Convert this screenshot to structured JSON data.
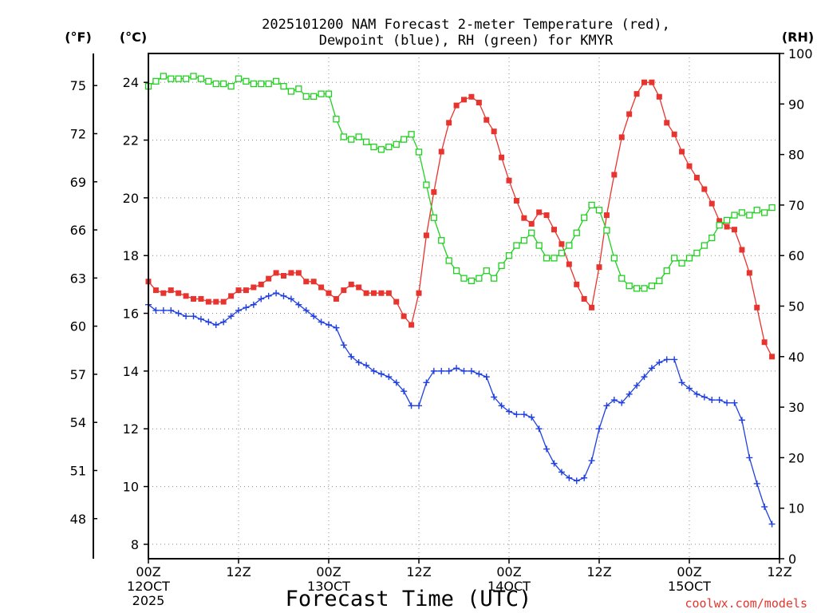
{
  "chart_data": {
    "type": "line",
    "title_lines": [
      "2025101200 NAM Forecast 2-meter Temperature (red),",
      "Dewpoint (blue), RH (green) for KMYR"
    ],
    "xlabel": "Forecast Time (UTC)",
    "credit": "coolwx.com/models",
    "units": {
      "fahrenheit": "(°F)",
      "celsius": "(°C)",
      "rh": "(RH)"
    },
    "x_range_hours": [
      0,
      84
    ],
    "x_ticks": [
      {
        "hour": 0,
        "lines": [
          "00Z",
          "12OCT",
          "2025"
        ]
      },
      {
        "hour": 12,
        "lines": [
          "12Z"
        ]
      },
      {
        "hour": 24,
        "lines": [
          "00Z",
          "13OCT"
        ]
      },
      {
        "hour": 36,
        "lines": [
          "12Z"
        ]
      },
      {
        "hour": 48,
        "lines": [
          "00Z",
          "14OCT"
        ]
      },
      {
        "hour": 60,
        "lines": [
          "12Z"
        ]
      },
      {
        "hour": 72,
        "lines": [
          "00Z",
          "15OCT"
        ]
      },
      {
        "hour": 84,
        "lines": [
          "12Z"
        ]
      }
    ],
    "celsius_axis": {
      "range": [
        7.5,
        25.0
      ],
      "ticks": [
        "8",
        "10",
        "12",
        "14",
        "16",
        "18",
        "20",
        "22",
        "24"
      ]
    },
    "fahrenheit_axis": {
      "ticks": [
        "48",
        "51",
        "54",
        "57",
        "60",
        "63",
        "66",
        "69",
        "72",
        "75"
      ]
    },
    "rh_axis": {
      "range": [
        0,
        100
      ],
      "ticks": [
        "0",
        "10",
        "20",
        "30",
        "40",
        "50",
        "60",
        "70",
        "80",
        "90",
        "100"
      ]
    },
    "series": [
      {
        "name": "Temperature",
        "units": "°C",
        "color": "#e8342e",
        "marker": "filled-square",
        "values": [
          17.1,
          16.8,
          16.7,
          16.8,
          16.7,
          16.6,
          16.5,
          16.5,
          16.4,
          16.4,
          16.4,
          16.6,
          16.8,
          16.8,
          16.9,
          17.0,
          17.2,
          17.4,
          17.3,
          17.4,
          17.4,
          17.1,
          17.1,
          16.9,
          16.7,
          16.5,
          16.8,
          17.0,
          16.9,
          16.7,
          16.7,
          16.7,
          16.7,
          16.4,
          15.9,
          15.6,
          16.7,
          18.7,
          20.2,
          21.6,
          22.6,
          23.2,
          23.4,
          23.5,
          23.3,
          22.7,
          22.3,
          21.4,
          20.6,
          19.9,
          19.3,
          19.1,
          19.5,
          19.4,
          18.9,
          18.4,
          17.7,
          17.0,
          16.5,
          16.2,
          17.6,
          19.4,
          20.8,
          22.1,
          22.9,
          23.6,
          24.0,
          24.0,
          23.5,
          22.6,
          22.2,
          21.6,
          21.1,
          20.7,
          20.3,
          19.8,
          19.2,
          19.0,
          18.9,
          18.2,
          17.4,
          16.2,
          15.0,
          14.5
        ]
      },
      {
        "name": "Dewpoint",
        "units": "°C",
        "color": "#1f3fe0",
        "marker": "plus",
        "values": [
          16.3,
          16.1,
          16.1,
          16.1,
          16.0,
          15.9,
          15.9,
          15.8,
          15.7,
          15.6,
          15.7,
          15.9,
          16.1,
          16.2,
          16.3,
          16.5,
          16.6,
          16.7,
          16.6,
          16.5,
          16.3,
          16.1,
          15.9,
          15.7,
          15.6,
          15.5,
          14.9,
          14.5,
          14.3,
          14.2,
          14.0,
          13.9,
          13.8,
          13.6,
          13.3,
          12.8,
          12.8,
          13.6,
          14.0,
          14.0,
          14.0,
          14.1,
          14.0,
          14.0,
          13.9,
          13.8,
          13.1,
          12.8,
          12.6,
          12.5,
          12.5,
          12.4,
          12.0,
          11.3,
          10.8,
          10.5,
          10.3,
          10.2,
          10.3,
          10.9,
          12.0,
          12.8,
          13.0,
          12.9,
          13.2,
          13.5,
          13.8,
          14.1,
          14.3,
          14.4,
          14.4,
          13.6,
          13.4,
          13.2,
          13.1,
          13.0,
          13.0,
          12.9,
          12.9,
          12.3,
          11.0,
          10.1,
          9.3,
          8.7
        ]
      },
      {
        "name": "Relative Humidity",
        "units": "%",
        "color": "#20d020",
        "marker": "open-square",
        "values": [
          93.5,
          94.5,
          95.5,
          95.0,
          95.0,
          95.0,
          95.5,
          95.0,
          94.5,
          94.0,
          94.0,
          93.5,
          95.0,
          94.5,
          94.0,
          94.0,
          94.0,
          94.5,
          93.5,
          92.5,
          93.0,
          91.5,
          91.5,
          92.0,
          92.0,
          87.0,
          83.5,
          83.0,
          83.5,
          82.5,
          81.5,
          81.0,
          81.5,
          82.0,
          83.0,
          84.0,
          80.5,
          74.0,
          67.5,
          63.0,
          59.0,
          57.0,
          55.5,
          55.0,
          55.5,
          57.0,
          55.5,
          58.0,
          60.0,
          62.0,
          63.0,
          64.5,
          62.0,
          59.5,
          59.5,
          60.5,
          62.0,
          64.5,
          67.5,
          70.0,
          69.0,
          65.0,
          59.5,
          55.5,
          54.0,
          53.5,
          53.5,
          54.0,
          55.0,
          57.0,
          59.5,
          58.5,
          59.5,
          60.5,
          62.0,
          63.5,
          66.0,
          67.0,
          68.0,
          68.5,
          68.0,
          69.0,
          68.5,
          69.5
        ]
      }
    ]
  }
}
